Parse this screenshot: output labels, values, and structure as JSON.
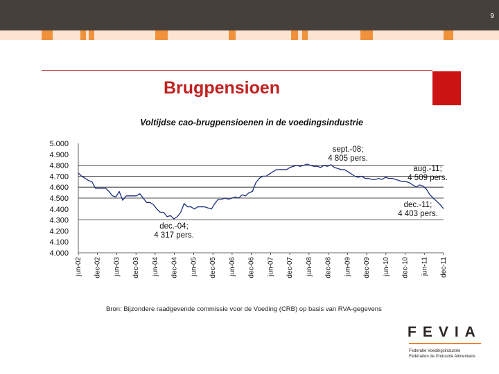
{
  "page_number": "9",
  "slide_title": "Brugpensioen",
  "colors": {
    "accent": "#c0201f",
    "top_bar": "#46403c",
    "stripe_orange": "#f0923c",
    "stripe_light": "#fce4d2",
    "logo_orange": "#e8862e"
  },
  "chart_data": {
    "type": "line",
    "title": "Voltijdse cao-brugpensioenen in de voedingsindustrie",
    "xlabel": "",
    "ylabel": "",
    "ylim": [
      4000,
      5000
    ],
    "y_ticks": [
      "5.000",
      "4.900",
      "4.800",
      "4.700",
      "4.600",
      "4.500",
      "4.400",
      "4.300",
      "4.200",
      "4.100",
      "4.000"
    ],
    "gridlines": [
      4800,
      4700,
      4600,
      4500,
      4300
    ],
    "x_ticks": [
      "jun-02",
      "dec-02",
      "jun-03",
      "dec-03",
      "jun-04",
      "dec-04",
      "jun-05",
      "dec-05",
      "jun-06",
      "dec-06",
      "jun-07",
      "dec-07",
      "jun-08",
      "dec-08",
      "jun-09",
      "dec-09",
      "jun-10",
      "dec-10",
      "jun-11",
      "dec-11"
    ],
    "series": [
      {
        "name": "",
        "color": "#1c2f7e",
        "values": [
          4730,
          4700,
          4680,
          4660,
          4650,
          4590,
          4590,
          4590,
          4590,
          4560,
          4520,
          4510,
          4560,
          4480,
          4520,
          4520,
          4520,
          4520,
          4540,
          4500,
          4460,
          4460,
          4440,
          4400,
          4370,
          4370,
          4330,
          4340,
          4310,
          4330,
          4370,
          4450,
          4420,
          4420,
          4400,
          4420,
          4420,
          4420,
          4410,
          4400,
          4450,
          4490,
          4490,
          4500,
          4490,
          4500,
          4510,
          4500,
          4530,
          4520,
          4550,
          4560,
          4640,
          4680,
          4700,
          4700,
          4720,
          4740,
          4760,
          4760,
          4760,
          4760,
          4780,
          4790,
          4800,
          4790,
          4800,
          4810,
          4800,
          4790,
          4790,
          4780,
          4800,
          4790,
          4805,
          4780,
          4770,
          4760,
          4760,
          4740,
          4720,
          4700,
          4690,
          4700,
          4680,
          4680,
          4670,
          4670,
          4680,
          4670,
          4690,
          4680,
          4680,
          4670,
          4660,
          4650,
          4650,
          4640,
          4620,
          4600,
          4620,
          4610,
          4580,
          4530,
          4500,
          4470,
          4440,
          4403
        ]
      }
    ],
    "annotations": [
      {
        "text": "sept.-08;\n4 805 pers."
      },
      {
        "text": "aug.-11;\n4 509 pers."
      },
      {
        "text": "dec.-11;\n4 403 pers."
      },
      {
        "text": "dec.-04;\n4 317 pers."
      }
    ]
  },
  "source_note": "Bron: Bijzondere raadgevende commissie voor de Voeding (CRB) op basis van RVA-gegevens",
  "logo": {
    "word": "FEVIA",
    "line1": "Federatie Voedingsindustrie",
    "line2": "Fédération de l'Industrie Alimentaire"
  }
}
